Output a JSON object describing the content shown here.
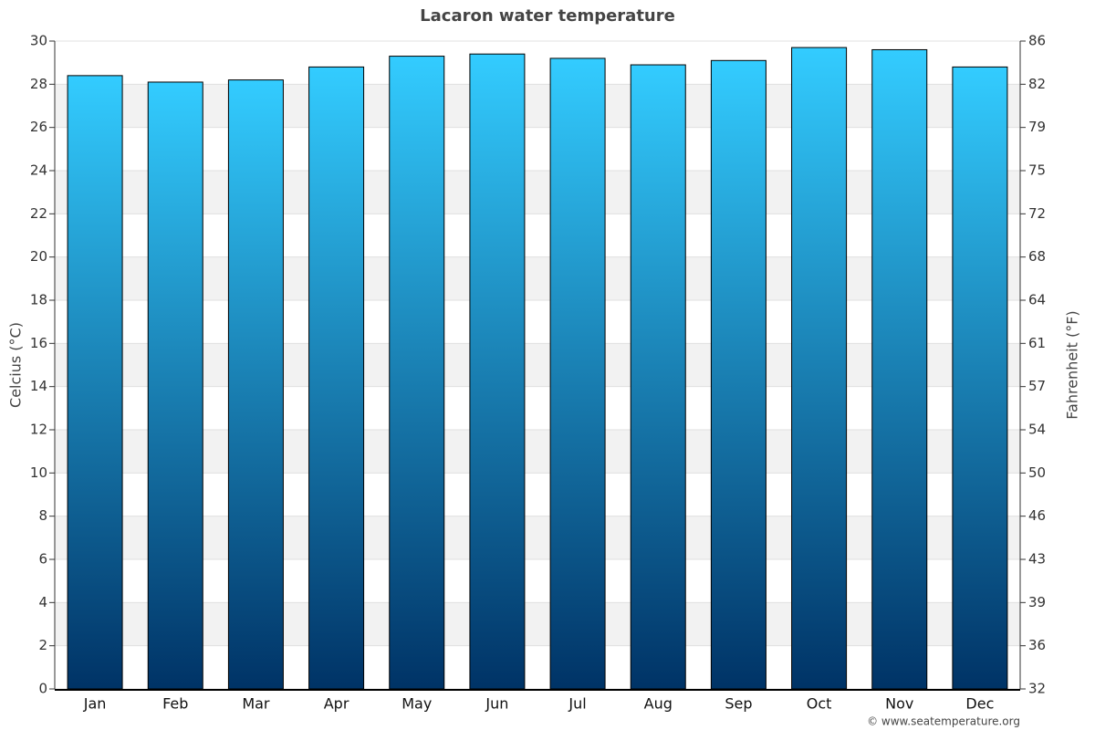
{
  "chart_data": {
    "type": "bar",
    "title": "Lacaron water temperature",
    "y_label": "Celcius (°C)",
    "y2_label": "Fahrenheit (°F)",
    "source": "© www.seatemperature.org",
    "categories": [
      "Jan",
      "Feb",
      "Mar",
      "Apr",
      "May",
      "Jun",
      "Jul",
      "Aug",
      "Sep",
      "Oct",
      "Nov",
      "Dec"
    ],
    "values": [
      28.4,
      28.1,
      28.2,
      28.8,
      29.3,
      29.4,
      29.2,
      28.9,
      29.1,
      29.7,
      29.6,
      28.8
    ],
    "color_top": "#33ccff",
    "color_bottom": "#003366",
    "ylim": [
      0,
      30
    ],
    "yticks": [
      0,
      2,
      4,
      6,
      8,
      10,
      12,
      14,
      16,
      18,
      20,
      22,
      24,
      26,
      28,
      30
    ],
    "y2lim": [
      32,
      86
    ],
    "y2ticks": [
      32,
      {
        "value": 35.6,
        "label": "36"
      },
      {
        "value": 39.2,
        "label": "39"
      },
      {
        "value": 42.8,
        "label": "43"
      },
      {
        "value": 46.4,
        "label": "46"
      },
      50,
      {
        "value": 53.6,
        "label": "54"
      },
      {
        "value": 57.2,
        "label": "57"
      },
      {
        "value": 60.8,
        "label": "61"
      },
      {
        "value": 64.4,
        "label": "64"
      },
      68,
      {
        "value": 71.6,
        "label": "72"
      },
      {
        "value": 75.2,
        "label": "75"
      },
      {
        "value": 78.8,
        "label": "79"
      },
      {
        "value": 82.4,
        "label": "82"
      },
      86
    ],
    "grid": true
  }
}
